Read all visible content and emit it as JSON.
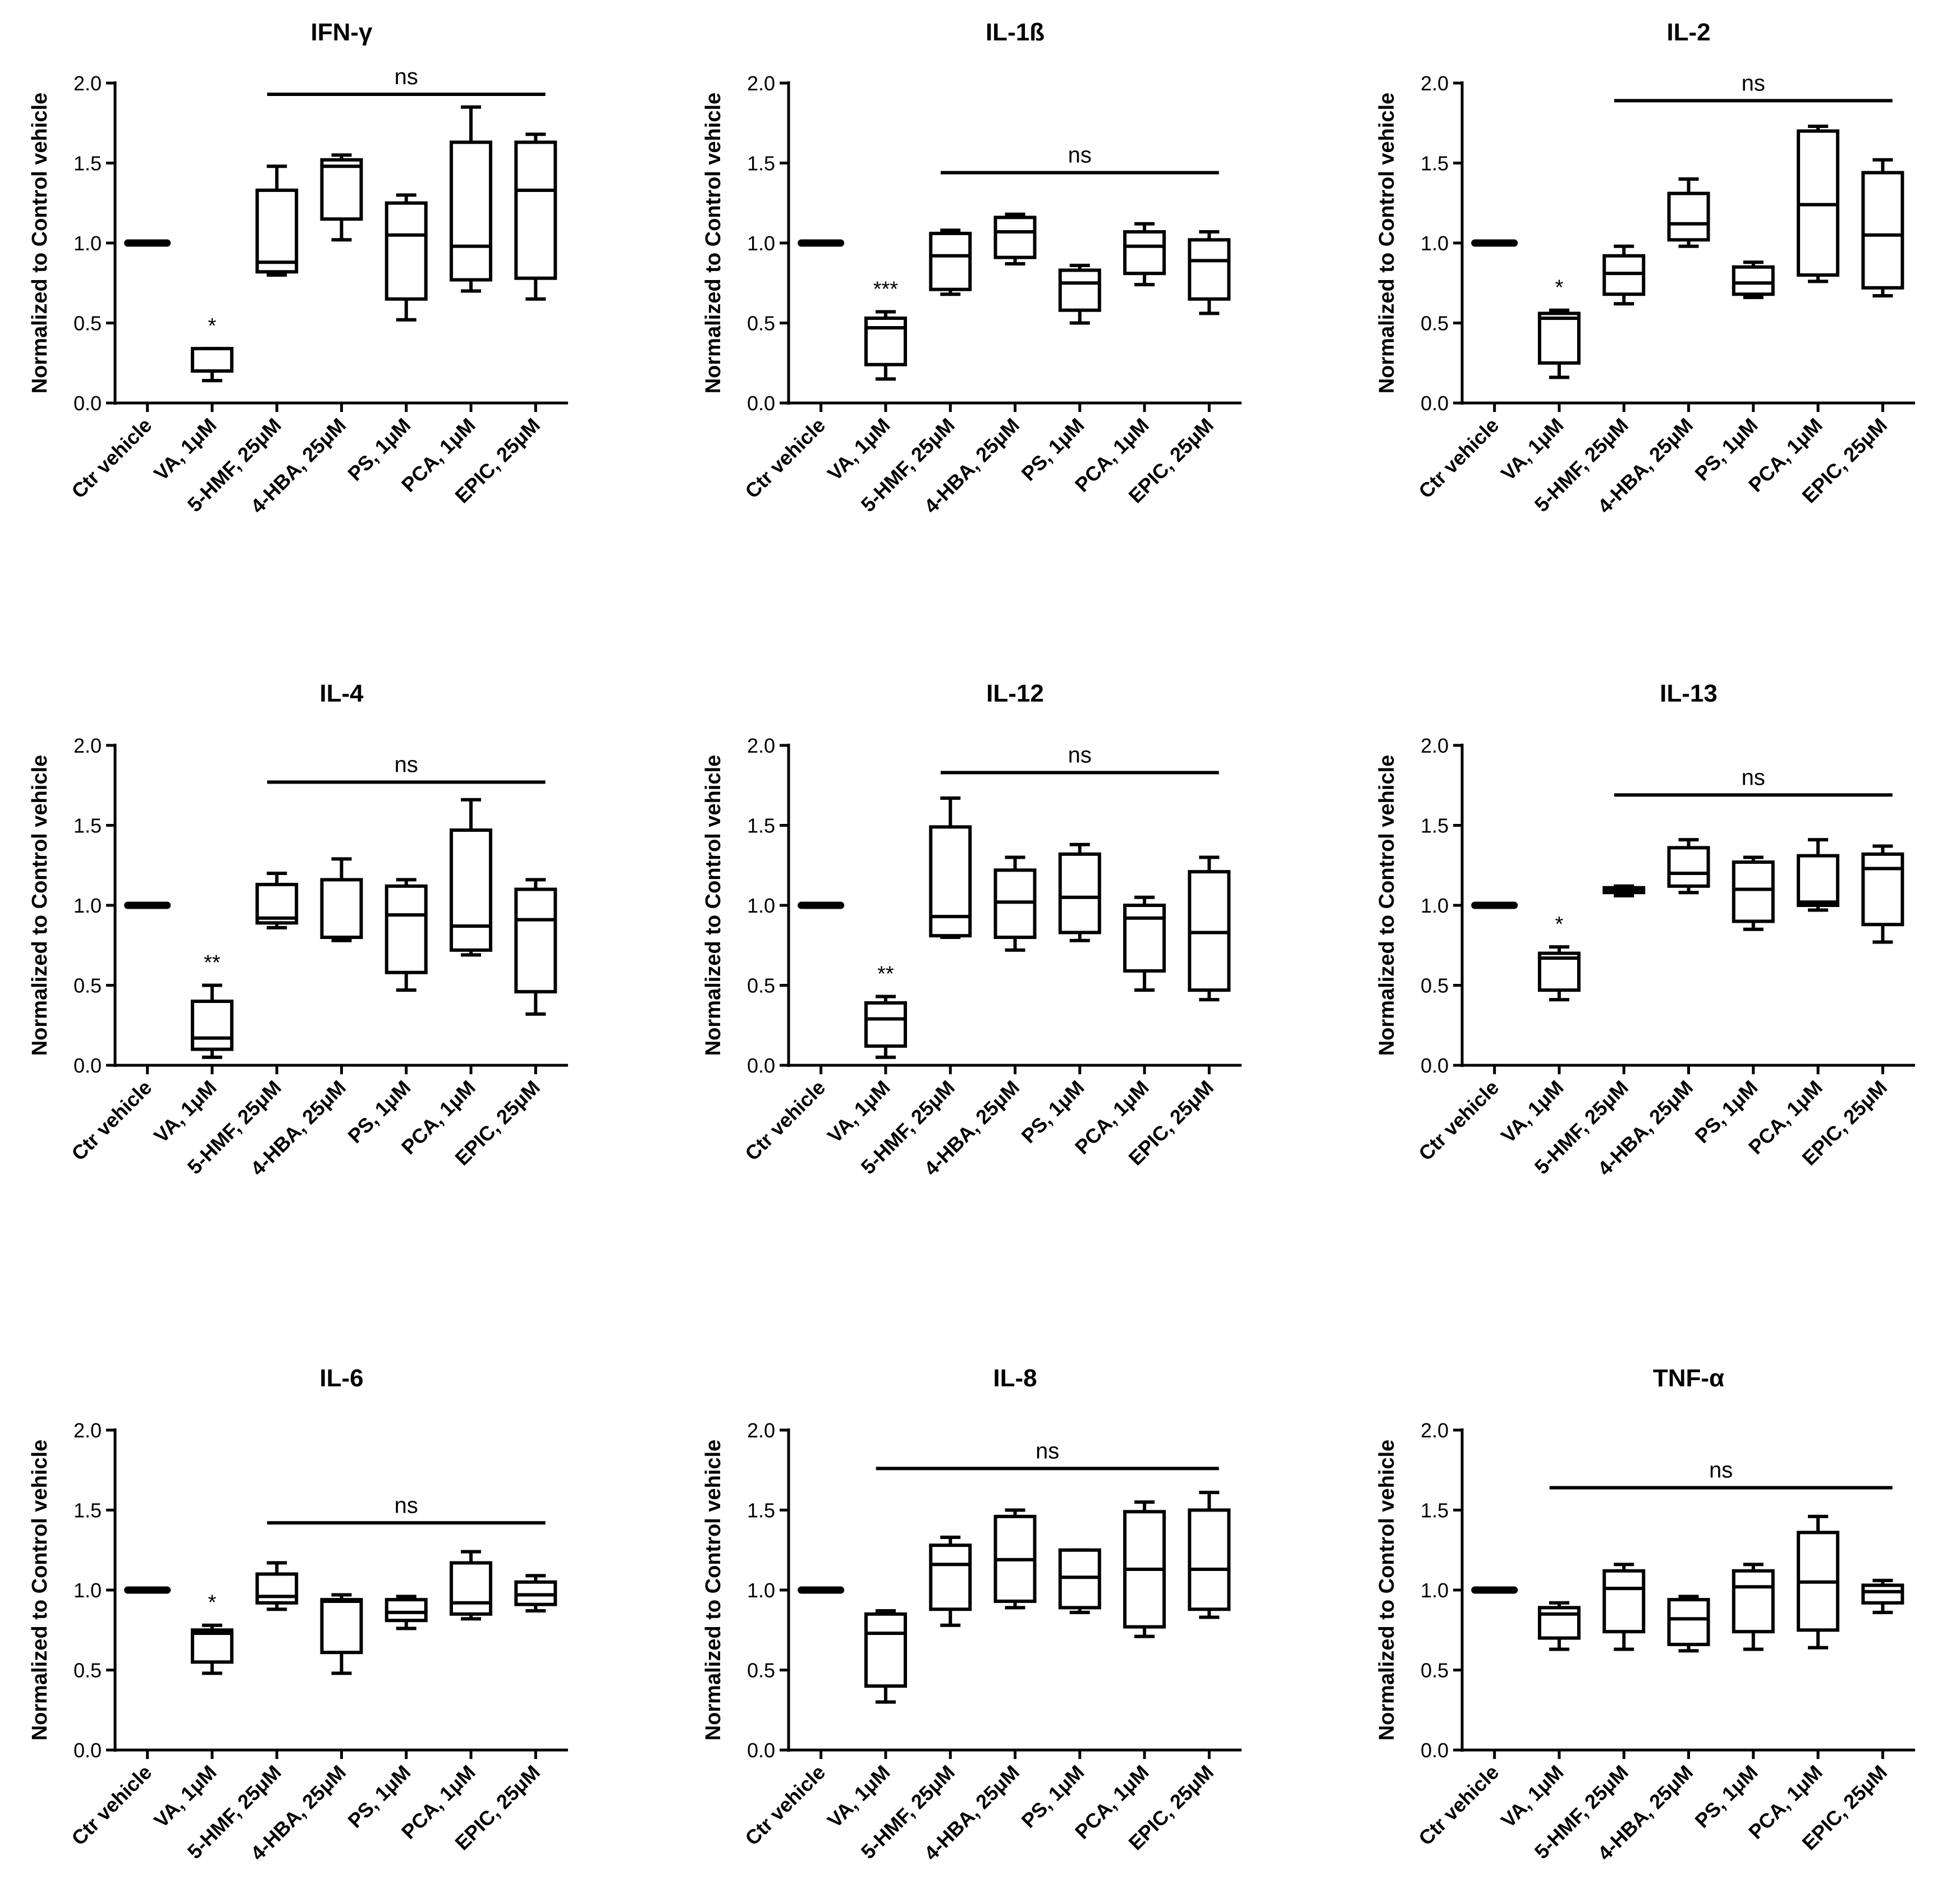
{
  "figure": {
    "categories": [
      "Ctr vehicle",
      "VA, 1μM",
      "5-HMF, 25μM",
      "4-HBA, 25μM",
      "PS, 1μM",
      "PCA, 1μM",
      "EPIC, 25μM"
    ],
    "ylabel": "Normalized to Control vehicle",
    "yticks": [
      "0.0",
      "0.5",
      "1.0",
      "1.5",
      "2.0"
    ]
  },
  "chart_data": [
    {
      "type": "box",
      "title": "IFN-γ",
      "ylabel": "Normalized to Control vehicle",
      "ylim": [
        0,
        2.0
      ],
      "categories": [
        "Ctr vehicle",
        "VA, 1μM",
        "5-HMF, 25μM",
        "4-HBA, 25μM",
        "PS, 1μM",
        "PCA, 1μM",
        "EPIC, 25μM"
      ],
      "boxes": [
        {
          "min": 1.0,
          "q1": 1.0,
          "median": 1.0,
          "q3": 1.0,
          "max": 1.0
        },
        {
          "min": 0.14,
          "q1": 0.2,
          "median": 0.2,
          "q3": 0.34,
          "max": 0.34
        },
        {
          "min": 0.8,
          "q1": 0.82,
          "median": 0.88,
          "q3": 1.33,
          "max": 1.48
        },
        {
          "min": 1.02,
          "q1": 1.15,
          "median": 1.48,
          "q3": 1.52,
          "max": 1.55
        },
        {
          "min": 0.52,
          "q1": 0.65,
          "median": 1.05,
          "q3": 1.25,
          "max": 1.3
        },
        {
          "min": 0.7,
          "q1": 0.77,
          "median": 0.98,
          "q3": 1.63,
          "max": 1.85
        },
        {
          "min": 0.65,
          "q1": 0.78,
          "median": 1.33,
          "q3": 1.63,
          "max": 1.68
        }
      ],
      "annotations": [
        {
          "category_index": 1,
          "text": "*"
        }
      ],
      "ns_bar": {
        "from": 2,
        "to": 6,
        "y": 1.93,
        "text": "ns"
      }
    },
    {
      "type": "box",
      "title": "IL-1ß",
      "ylabel": "Normalized to Control vehicle",
      "ylim": [
        0,
        2.0
      ],
      "categories": [
        "Ctr vehicle",
        "VA, 1μM",
        "5-HMF, 25μM",
        "4-HBA, 25μM",
        "PS, 1μM",
        "PCA, 1μM",
        "EPIC, 25μM"
      ],
      "boxes": [
        {
          "min": 1.0,
          "q1": 1.0,
          "median": 1.0,
          "q3": 1.0,
          "max": 1.0
        },
        {
          "min": 0.15,
          "q1": 0.24,
          "median": 0.47,
          "q3": 0.53,
          "max": 0.57
        },
        {
          "min": 0.68,
          "q1": 0.71,
          "median": 0.92,
          "q3": 1.06,
          "max": 1.08
        },
        {
          "min": 0.87,
          "q1": 0.91,
          "median": 1.07,
          "q3": 1.16,
          "max": 1.18
        },
        {
          "min": 0.5,
          "q1": 0.58,
          "median": 0.75,
          "q3": 0.83,
          "max": 0.86
        },
        {
          "min": 0.74,
          "q1": 0.81,
          "median": 0.98,
          "q3": 1.07,
          "max": 1.12
        },
        {
          "min": 0.56,
          "q1": 0.65,
          "median": 0.89,
          "q3": 1.02,
          "max": 1.07
        }
      ],
      "annotations": [
        {
          "category_index": 1,
          "text": "***"
        }
      ],
      "ns_bar": {
        "from": 2,
        "to": 6,
        "y": 1.44,
        "text": "ns"
      }
    },
    {
      "type": "box",
      "title": "IL-2",
      "ylabel": "Normalized to Control vehicle",
      "ylim": [
        0,
        2.0
      ],
      "categories": [
        "Ctr vehicle",
        "VA, 1μM",
        "5-HMF, 25μM",
        "4-HBA, 25μM",
        "PS, 1μM",
        "PCA, 1μM",
        "EPIC, 25μM"
      ],
      "boxes": [
        {
          "min": 1.0,
          "q1": 1.0,
          "median": 1.0,
          "q3": 1.0,
          "max": 1.0
        },
        {
          "min": 0.16,
          "q1": 0.25,
          "median": 0.53,
          "q3": 0.56,
          "max": 0.58
        },
        {
          "min": 0.62,
          "q1": 0.68,
          "median": 0.81,
          "q3": 0.92,
          "max": 0.98
        },
        {
          "min": 0.98,
          "q1": 1.02,
          "median": 1.12,
          "q3": 1.31,
          "max": 1.4
        },
        {
          "min": 0.66,
          "q1": 0.68,
          "median": 0.75,
          "q3": 0.85,
          "max": 0.88
        },
        {
          "min": 0.76,
          "q1": 0.8,
          "median": 1.24,
          "q3": 1.7,
          "max": 1.73
        },
        {
          "min": 0.67,
          "q1": 0.72,
          "median": 1.05,
          "q3": 1.44,
          "max": 1.52
        }
      ],
      "annotations": [
        {
          "category_index": 1,
          "text": "*"
        }
      ],
      "ns_bar": {
        "from": 2,
        "to": 6,
        "y": 1.89,
        "text": "ns"
      }
    },
    {
      "type": "box",
      "title": "IL-4",
      "ylabel": "Normalized to Control vehicle",
      "ylim": [
        0,
        2.0
      ],
      "categories": [
        "Ctr vehicle",
        "VA, 1μM",
        "5-HMF, 25μM",
        "4-HBA, 25μM",
        "PS, 1μM",
        "PCA, 1μM",
        "EPIC, 25μM"
      ],
      "boxes": [
        {
          "min": 1.0,
          "q1": 1.0,
          "median": 1.0,
          "q3": 1.0,
          "max": 1.0
        },
        {
          "min": 0.05,
          "q1": 0.1,
          "median": 0.17,
          "q3": 0.4,
          "max": 0.5
        },
        {
          "min": 0.86,
          "q1": 0.89,
          "median": 0.92,
          "q3": 1.13,
          "max": 1.2
        },
        {
          "min": 0.78,
          "q1": 0.8,
          "median": 0.8,
          "q3": 1.16,
          "max": 1.29
        },
        {
          "min": 0.47,
          "q1": 0.58,
          "median": 0.94,
          "q3": 1.12,
          "max": 1.16
        },
        {
          "min": 0.69,
          "q1": 0.72,
          "median": 0.87,
          "q3": 1.47,
          "max": 1.66
        },
        {
          "min": 0.32,
          "q1": 0.46,
          "median": 0.91,
          "q3": 1.1,
          "max": 1.16
        }
      ],
      "annotations": [
        {
          "category_index": 1,
          "text": "**"
        }
      ],
      "ns_bar": {
        "from": 2,
        "to": 6,
        "y": 1.77,
        "text": "ns"
      }
    },
    {
      "type": "box",
      "title": "IL-12",
      "ylabel": "Normalized to Control vehicle",
      "ylim": [
        0,
        2.0
      ],
      "categories": [
        "Ctr vehicle",
        "VA, 1μM",
        "5-HMF, 25μM",
        "4-HBA, 25μM",
        "PS, 1μM",
        "PCA, 1μM",
        "EPIC, 25μM"
      ],
      "boxes": [
        {
          "min": 1.0,
          "q1": 1.0,
          "median": 1.0,
          "q3": 1.0,
          "max": 1.0
        },
        {
          "min": 0.05,
          "q1": 0.12,
          "median": 0.29,
          "q3": 0.39,
          "max": 0.43
        },
        {
          "min": 0.8,
          "q1": 0.81,
          "median": 0.93,
          "q3": 1.49,
          "max": 1.67
        },
        {
          "min": 0.72,
          "q1": 0.8,
          "median": 1.02,
          "q3": 1.22,
          "max": 1.3
        },
        {
          "min": 0.78,
          "q1": 0.83,
          "median": 1.05,
          "q3": 1.32,
          "max": 1.38
        },
        {
          "min": 0.47,
          "q1": 0.59,
          "median": 0.92,
          "q3": 1.0,
          "max": 1.05
        },
        {
          "min": 0.41,
          "q1": 0.47,
          "median": 0.83,
          "q3": 1.21,
          "max": 1.3
        }
      ],
      "annotations": [
        {
          "category_index": 1,
          "text": "**"
        }
      ],
      "ns_bar": {
        "from": 2,
        "to": 6,
        "y": 1.83,
        "text": "ns"
      }
    },
    {
      "type": "box",
      "title": "IL-13",
      "ylabel": "Normalized to Control vehicle",
      "ylim": [
        0,
        2.0
      ],
      "categories": [
        "Ctr vehicle",
        "VA, 1μM",
        "5-HMF, 25μM",
        "4-HBA, 25μM",
        "PS, 1μM",
        "PCA, 1μM",
        "EPIC, 25μM"
      ],
      "boxes": [
        {
          "min": 1.0,
          "q1": 1.0,
          "median": 1.0,
          "q3": 1.0,
          "max": 1.0
        },
        {
          "min": 0.41,
          "q1": 0.47,
          "median": 0.67,
          "q3": 0.7,
          "max": 0.74
        },
        {
          "min": 1.06,
          "q1": 1.08,
          "median": 1.1,
          "q3": 1.11,
          "max": 1.12
        },
        {
          "min": 1.08,
          "q1": 1.12,
          "median": 1.2,
          "q3": 1.36,
          "max": 1.41
        },
        {
          "min": 0.85,
          "q1": 0.9,
          "median": 1.1,
          "q3": 1.27,
          "max": 1.3
        },
        {
          "min": 0.97,
          "q1": 1.0,
          "median": 1.02,
          "q3": 1.31,
          "max": 1.41
        },
        {
          "min": 0.77,
          "q1": 0.88,
          "median": 1.23,
          "q3": 1.32,
          "max": 1.37
        }
      ],
      "annotations": [
        {
          "category_index": 1,
          "text": "*"
        }
      ],
      "ns_bar": {
        "from": 2,
        "to": 6,
        "y": 1.69,
        "text": "ns"
      }
    },
    {
      "type": "box",
      "title": "IL-6",
      "ylabel": "Normalized to Control vehicle",
      "ylim": [
        0,
        2.0
      ],
      "categories": [
        "Ctr vehicle",
        "VA, 1μM",
        "5-HMF, 25μM",
        "4-HBA, 25μM",
        "PS, 1μM",
        "PCA, 1μM",
        "EPIC, 25μM"
      ],
      "boxes": [
        {
          "min": 1.0,
          "q1": 1.0,
          "median": 1.0,
          "q3": 1.0,
          "max": 1.0
        },
        {
          "min": 0.48,
          "q1": 0.55,
          "median": 0.73,
          "q3": 0.75,
          "max": 0.78
        },
        {
          "min": 0.88,
          "q1": 0.92,
          "median": 0.96,
          "q3": 1.1,
          "max": 1.17
        },
        {
          "min": 0.48,
          "q1": 0.61,
          "median": 0.93,
          "q3": 0.94,
          "max": 0.97
        },
        {
          "min": 0.76,
          "q1": 0.81,
          "median": 0.86,
          "q3": 0.94,
          "max": 0.96
        },
        {
          "min": 0.82,
          "q1": 0.85,
          "median": 0.92,
          "q3": 1.17,
          "max": 1.24
        },
        {
          "min": 0.87,
          "q1": 0.91,
          "median": 0.97,
          "q3": 1.05,
          "max": 1.09
        }
      ],
      "annotations": [
        {
          "category_index": 1,
          "text": "*"
        }
      ],
      "ns_bar": {
        "from": 2,
        "to": 6,
        "y": 1.42,
        "text": "ns"
      }
    },
    {
      "type": "box",
      "title": "IL-8",
      "ylabel": "Normalized to Control vehicle",
      "ylim": [
        0,
        2.0
      ],
      "categories": [
        "Ctr vehicle",
        "VA, 1μM",
        "5-HMF, 25μM",
        "4-HBA, 25μM",
        "PS, 1μM",
        "PCA, 1μM",
        "EPIC, 25μM"
      ],
      "boxes": [
        {
          "min": 1.0,
          "q1": 1.0,
          "median": 1.0,
          "q3": 1.0,
          "max": 1.0
        },
        {
          "min": 0.3,
          "q1": 0.4,
          "median": 0.73,
          "q3": 0.85,
          "max": 0.87
        },
        {
          "min": 0.78,
          "q1": 0.88,
          "median": 1.16,
          "q3": 1.28,
          "max": 1.33
        },
        {
          "min": 0.89,
          "q1": 0.93,
          "median": 1.19,
          "q3": 1.46,
          "max": 1.5
        },
        {
          "min": 0.86,
          "q1": 0.89,
          "median": 1.08,
          "q3": 1.25,
          "max": 1.25
        },
        {
          "min": 0.71,
          "q1": 0.77,
          "median": 1.13,
          "q3": 1.49,
          "max": 1.55
        },
        {
          "min": 0.83,
          "q1": 0.88,
          "median": 1.13,
          "q3": 1.5,
          "max": 1.61
        }
      ],
      "annotations": [],
      "ns_bar": {
        "from": 1,
        "to": 6,
        "y": 1.76,
        "text": "ns"
      }
    },
    {
      "type": "box",
      "title": "TNF-α",
      "ylabel": "Normalized to Control vehicle",
      "ylim": [
        0,
        2.0
      ],
      "categories": [
        "Ctr vehicle",
        "VA, 1μM",
        "5-HMF, 25μM",
        "4-HBA, 25μM",
        "PS, 1μM",
        "PCA, 1μM",
        "EPIC, 25μM"
      ],
      "boxes": [
        {
          "min": 1.0,
          "q1": 1.0,
          "median": 1.0,
          "q3": 1.0,
          "max": 1.0
        },
        {
          "min": 0.63,
          "q1": 0.7,
          "median": 0.85,
          "q3": 0.89,
          "max": 0.92
        },
        {
          "min": 0.63,
          "q1": 0.74,
          "median": 1.01,
          "q3": 1.12,
          "max": 1.16
        },
        {
          "min": 0.62,
          "q1": 0.66,
          "median": 0.82,
          "q3": 0.94,
          "max": 0.96
        },
        {
          "min": 0.63,
          "q1": 0.74,
          "median": 1.02,
          "q3": 1.12,
          "max": 1.16
        },
        {
          "min": 0.64,
          "q1": 0.75,
          "median": 1.05,
          "q3": 1.36,
          "max": 1.46
        },
        {
          "min": 0.86,
          "q1": 0.92,
          "median": 0.99,
          "q3": 1.03,
          "max": 1.06
        }
      ],
      "annotations": [],
      "ns_bar": {
        "from": 1,
        "to": 6,
        "y": 1.64,
        "text": "ns"
      }
    }
  ]
}
